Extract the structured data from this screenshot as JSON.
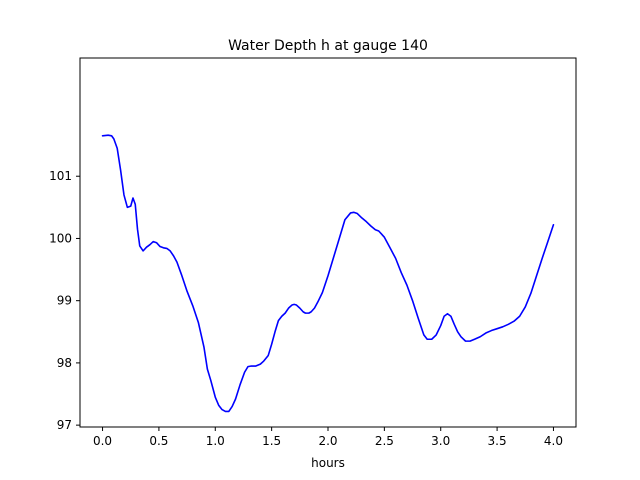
{
  "chart_data": {
    "type": "line",
    "title": "Water Depth h at gauge 140",
    "xlabel": "hours",
    "ylabel": "",
    "xlim": [
      -0.2,
      4.2
    ],
    "ylim": [
      96.97,
      102.9
    ],
    "x_ticks": [
      0.0,
      0.5,
      1.0,
      1.5,
      2.0,
      2.5,
      3.0,
      3.5,
      4.0
    ],
    "x_tick_labels": [
      "0.0",
      "0.5",
      "1.0",
      "1.5",
      "2.0",
      "2.5",
      "3.0",
      "3.5",
      "4.0"
    ],
    "y_ticks": [
      97,
      98,
      99,
      100,
      101
    ],
    "y_tick_labels": [
      "97",
      "98",
      "99",
      "100",
      "101"
    ],
    "grid": false,
    "legend": "none",
    "series": [
      {
        "color": "#0000ff",
        "x": [
          0.0,
          0.05,
          0.08,
          0.1,
          0.13,
          0.16,
          0.19,
          0.22,
          0.25,
          0.27,
          0.29,
          0.31,
          0.33,
          0.36,
          0.39,
          0.42,
          0.45,
          0.48,
          0.51,
          0.54,
          0.57,
          0.6,
          0.63,
          0.66,
          0.7,
          0.75,
          0.8,
          0.85,
          0.9,
          0.93,
          0.96,
          1.0,
          1.03,
          1.06,
          1.09,
          1.12,
          1.15,
          1.18,
          1.22,
          1.26,
          1.29,
          1.32,
          1.36,
          1.4,
          1.43,
          1.47,
          1.5,
          1.53,
          1.56,
          1.59,
          1.62,
          1.65,
          1.68,
          1.7,
          1.72,
          1.75,
          1.78,
          1.8,
          1.83,
          1.85,
          1.88,
          1.91,
          1.95,
          2.0,
          2.05,
          2.1,
          2.15,
          2.2,
          2.23,
          2.26,
          2.3,
          2.34,
          2.38,
          2.42,
          2.45,
          2.5,
          2.55,
          2.6,
          2.65,
          2.7,
          2.75,
          2.8,
          2.85,
          2.88,
          2.92,
          2.96,
          3.0,
          3.03,
          3.06,
          3.09,
          3.12,
          3.15,
          3.18,
          3.22,
          3.26,
          3.3,
          3.35,
          3.4,
          3.45,
          3.5,
          3.55,
          3.6,
          3.65,
          3.7,
          3.75,
          3.8,
          3.85,
          3.9,
          3.95,
          4.0
        ],
        "y": [
          101.65,
          101.66,
          101.65,
          101.6,
          101.45,
          101.1,
          100.7,
          100.5,
          100.52,
          100.65,
          100.55,
          100.15,
          99.88,
          99.8,
          99.86,
          99.9,
          99.95,
          99.93,
          99.87,
          99.85,
          99.84,
          99.8,
          99.72,
          99.62,
          99.42,
          99.15,
          98.92,
          98.65,
          98.25,
          97.9,
          97.72,
          97.45,
          97.32,
          97.25,
          97.22,
          97.22,
          97.3,
          97.42,
          97.65,
          97.85,
          97.94,
          97.95,
          97.95,
          97.98,
          98.03,
          98.12,
          98.3,
          98.5,
          98.68,
          98.75,
          98.8,
          98.88,
          98.93,
          98.94,
          98.93,
          98.88,
          98.82,
          98.8,
          98.8,
          98.82,
          98.88,
          98.98,
          99.13,
          99.4,
          99.7,
          100.0,
          100.3,
          100.41,
          100.42,
          100.4,
          100.33,
          100.27,
          100.2,
          100.14,
          100.12,
          100.02,
          99.85,
          99.68,
          99.45,
          99.25,
          99.0,
          98.72,
          98.45,
          98.38,
          98.38,
          98.45,
          98.6,
          98.75,
          98.79,
          98.75,
          98.62,
          98.5,
          98.42,
          98.35,
          98.35,
          98.38,
          98.42,
          98.48,
          98.52,
          98.55,
          98.58,
          98.62,
          98.67,
          98.75,
          98.9,
          99.12,
          99.4,
          99.68,
          99.95,
          100.22
        ]
      }
    ]
  }
}
